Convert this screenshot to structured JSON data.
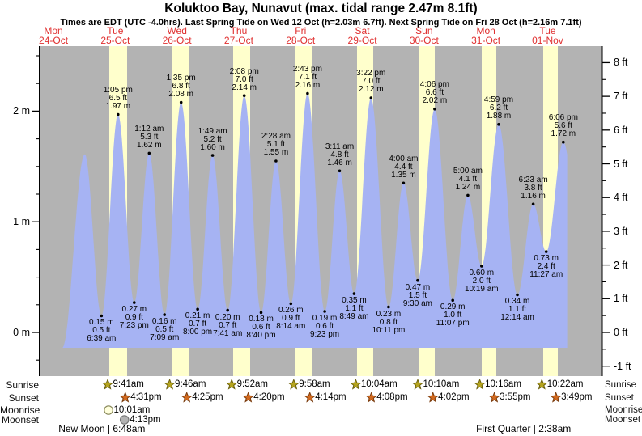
{
  "header": {
    "title": "Koluktoo Bay, Nunavut (max. tidal range 2.47m 8.1ft)",
    "subtitle": "Times are EDT (UTC -4.0hrs). Last Spring Tide on Wed 12 Oct (h=2.03m 6.7ft). Next Spring Tide on Fri 28 Oct (h=2.16m 7.1ft)"
  },
  "colors": {
    "plot_bg": "#b3b3b3",
    "daylight": "#ffffcc",
    "tide_fill": "#a6b3f3",
    "day_label": "#e03030",
    "sunrise_star": "#b5a41e",
    "sunrise_star_stroke": "#6b610f",
    "sunset_star": "#d2691e",
    "sunset_star_stroke": "#7a3c0e",
    "moonrise_fill": "#ffffdd",
    "moonrise_stroke": "#88885a",
    "moonset_fill": "#b3b3b3",
    "moonset_stroke": "#777777"
  },
  "axis": {
    "left_ticks": [
      {
        "v": 2,
        "label": "2 m"
      },
      {
        "v": 1,
        "label": "1 m"
      },
      {
        "v": 0,
        "label": "0 m"
      }
    ],
    "right_ticks": [
      {
        "v": 8,
        "label": "8 ft"
      },
      {
        "v": 7,
        "label": "7 ft"
      },
      {
        "v": 6,
        "label": "6 ft"
      },
      {
        "v": 5,
        "label": "5 ft"
      },
      {
        "v": 4,
        "label": "4 ft"
      },
      {
        "v": 3,
        "label": "3 ft"
      },
      {
        "v": 2,
        "label": "2 ft"
      },
      {
        "v": 1,
        "label": "1 ft"
      },
      {
        "v": 0,
        "label": "0 ft"
      },
      {
        "v": -1,
        "label": "-1 ft"
      }
    ]
  },
  "chart_data": {
    "type": "area",
    "title": "Koluktoo Bay, Nunavut (max. tidal range 2.47m 8.1ft)",
    "ylabel_left": "m",
    "ylabel_right": "ft",
    "ylim_m": [
      -0.4,
      2.6
    ],
    "days": [
      {
        "name": "Mon",
        "date": "24-Oct"
      },
      {
        "name": "Tue",
        "date": "25-Oct"
      },
      {
        "name": "Wed",
        "date": "26-Oct"
      },
      {
        "name": "Thu",
        "date": "27-Oct"
      },
      {
        "name": "Fri",
        "date": "28-Oct"
      },
      {
        "name": "Sat",
        "date": "29-Oct"
      },
      {
        "name": "Sun",
        "date": "30-Oct"
      },
      {
        "name": "Mon",
        "date": "31-Oct"
      },
      {
        "name": "Tue",
        "date": "01-Nov"
      }
    ],
    "curve_start": {
      "day": 0,
      "hour": 15.4,
      "h": -0.14
    },
    "curve_end": {
      "day": 8,
      "hour": 19.6
    },
    "end_pseudo_low": {
      "day": 9,
      "hour": 2.0,
      "h": 0.4
    },
    "extrema": [
      {
        "kind": "high",
        "day": 1,
        "hour": 0.15,
        "h": 1.61
      },
      {
        "kind": "low",
        "day": 1,
        "hour": 6.65,
        "h": 0.15,
        "time": "6:39 am",
        "ft": "0.5 ft",
        "m": "0.15 m"
      },
      {
        "kind": "high",
        "day": 1,
        "hour": 13.083,
        "h": 1.97,
        "time": "1:05 pm",
        "ft": "6.5 ft",
        "m": "1.97 m"
      },
      {
        "kind": "low",
        "day": 1,
        "hour": 19.383,
        "h": 0.27,
        "time": "7:23 pm",
        "ft": "0.9 ft",
        "m": "0.27 m"
      },
      {
        "kind": "high",
        "day": 2,
        "hour": 1.2,
        "h": 1.62,
        "time": "1:12 am",
        "ft": "5.3 ft",
        "m": "1.62 m"
      },
      {
        "kind": "low",
        "day": 2,
        "hour": 7.15,
        "h": 0.16,
        "time": "7:09 am",
        "ft": "0.5 ft",
        "m": "0.16 m"
      },
      {
        "kind": "high",
        "day": 2,
        "hour": 13.583,
        "h": 2.08,
        "time": "1:35 pm",
        "ft": "6.8 ft",
        "m": "2.08 m"
      },
      {
        "kind": "low",
        "day": 2,
        "hour": 20.0,
        "h": 0.21,
        "time": "8:00 pm",
        "ft": "0.7 ft",
        "m": "0.21 m"
      },
      {
        "kind": "high",
        "day": 3,
        "hour": 1.817,
        "h": 1.6,
        "time": "1:49 am",
        "ft": "5.2 ft",
        "m": "1.60 m"
      },
      {
        "kind": "low",
        "day": 3,
        "hour": 7.683,
        "h": 0.2,
        "time": "7:41 am",
        "ft": "0.7 ft",
        "m": "0.20 m"
      },
      {
        "kind": "high",
        "day": 3,
        "hour": 14.133,
        "h": 2.14,
        "time": "2:08 pm",
        "ft": "7.0 ft",
        "m": "2.14 m"
      },
      {
        "kind": "low",
        "day": 3,
        "hour": 20.667,
        "h": 0.18,
        "time": "8:40 pm",
        "ft": "0.6 ft",
        "m": "0.18 m"
      },
      {
        "kind": "high",
        "day": 4,
        "hour": 2.467,
        "h": 1.55,
        "time": "2:28 am",
        "ft": "5.1 ft",
        "m": "1.55 m"
      },
      {
        "kind": "low",
        "day": 4,
        "hour": 8.233,
        "h": 0.26,
        "time": "8:14 am",
        "ft": "0.9 ft",
        "m": "0.26 m"
      },
      {
        "kind": "high",
        "day": 4,
        "hour": 14.717,
        "h": 2.16,
        "time": "2:43 pm",
        "ft": "7.1 ft",
        "m": "2.16 m"
      },
      {
        "kind": "low",
        "day": 4,
        "hour": 21.383,
        "h": 0.19,
        "time": "9:23 pm",
        "ft": "0.6 ft",
        "m": "0.19 m"
      },
      {
        "kind": "high",
        "day": 5,
        "hour": 3.183,
        "h": 1.46,
        "time": "3:11 am",
        "ft": "4.8 ft",
        "m": "1.46 m"
      },
      {
        "kind": "low",
        "day": 5,
        "hour": 8.817,
        "h": 0.35,
        "time": "8:49 am",
        "ft": "1.1 ft",
        "m": "0.35 m"
      },
      {
        "kind": "high",
        "day": 5,
        "hour": 15.367,
        "h": 2.12,
        "time": "3:22 pm",
        "ft": "7.0 ft",
        "m": "2.12 m"
      },
      {
        "kind": "low",
        "day": 5,
        "hour": 22.183,
        "h": 0.23,
        "time": "10:11 pm",
        "ft": "0.8 ft",
        "m": "0.23 m"
      },
      {
        "kind": "high",
        "day": 6,
        "hour": 4.0,
        "h": 1.35,
        "time": "4:00 am",
        "ft": "4.4 ft",
        "m": "1.35 m"
      },
      {
        "kind": "low",
        "day": 6,
        "hour": 9.5,
        "h": 0.47,
        "time": "9:30 am",
        "ft": "1.5 ft",
        "m": "0.47 m"
      },
      {
        "kind": "high",
        "day": 6,
        "hour": 16.1,
        "h": 2.02,
        "time": "4:06 pm",
        "ft": "6.6 ft",
        "m": "2.02 m"
      },
      {
        "kind": "low",
        "day": 6,
        "hour": 23.117,
        "h": 0.29,
        "time": "11:07 pm",
        "ft": "1.0 ft",
        "m": "0.29 m"
      },
      {
        "kind": "high",
        "day": 7,
        "hour": 5.0,
        "h": 1.24,
        "time": "5:00 am",
        "ft": "4.1 ft",
        "m": "1.24 m"
      },
      {
        "kind": "low",
        "day": 7,
        "hour": 10.317,
        "h": 0.6,
        "time": "10:19 am",
        "ft": "2.0 ft",
        "m": "0.60 m"
      },
      {
        "kind": "high",
        "day": 7,
        "hour": 16.983,
        "h": 1.88,
        "time": "4:59 pm",
        "ft": "6.2 ft",
        "m": "1.88 m"
      },
      {
        "kind": "low",
        "day": 8,
        "hour": 0.233,
        "h": 0.34,
        "time": "12:14 am",
        "ft": "1.1 ft",
        "m": "0.34 m"
      },
      {
        "kind": "high",
        "day": 8,
        "hour": 6.383,
        "h": 1.16,
        "time": "6:23 am",
        "ft": "3.8 ft",
        "m": "1.16 m"
      },
      {
        "kind": "low",
        "day": 8,
        "hour": 11.45,
        "h": 0.73,
        "time": "11:27 am",
        "ft": "2.4 ft",
        "m": "0.73 m"
      },
      {
        "kind": "high",
        "day": 8,
        "hour": 18.1,
        "h": 1.72,
        "time": "6:06 pm",
        "ft": "5.6 ft",
        "m": "1.72 m"
      }
    ]
  },
  "sun_moon": {
    "row_labels": [
      "Sunrise",
      "Sunset",
      "Moonrise",
      "Moonset"
    ],
    "sunrise": [
      {
        "day": 1,
        "hour": 9.683,
        "time": "9:41am"
      },
      {
        "day": 2,
        "hour": 9.767,
        "time": "9:46am"
      },
      {
        "day": 3,
        "hour": 9.867,
        "time": "9:52am"
      },
      {
        "day": 4,
        "hour": 9.967,
        "time": "9:58am"
      },
      {
        "day": 5,
        "hour": 10.067,
        "time": "10:04am"
      },
      {
        "day": 6,
        "hour": 10.167,
        "time": "10:10am"
      },
      {
        "day": 7,
        "hour": 10.267,
        "time": "10:16am"
      },
      {
        "day": 8,
        "hour": 10.367,
        "time": "10:22am"
      }
    ],
    "sunset": [
      {
        "day": 1,
        "hour": 16.517,
        "time": "4:31pm"
      },
      {
        "day": 2,
        "hour": 16.417,
        "time": "4:25pm"
      },
      {
        "day": 3,
        "hour": 16.333,
        "time": "4:20pm"
      },
      {
        "day": 4,
        "hour": 16.233,
        "time": "4:14pm"
      },
      {
        "day": 5,
        "hour": 16.133,
        "time": "4:08pm"
      },
      {
        "day": 6,
        "hour": 16.033,
        "time": "4:02pm"
      },
      {
        "day": 7,
        "hour": 15.917,
        "time": "3:55pm"
      },
      {
        "day": 8,
        "hour": 15.817,
        "time": "3:49pm"
      }
    ],
    "moonrise": [
      {
        "day": 1,
        "hour": 10.017,
        "time": "10:01am"
      }
    ],
    "moonset": [
      {
        "day": 1,
        "hour": 16.217,
        "time": "4:13pm"
      }
    ],
    "phases": [
      {
        "label": "New Moon | 6:48am",
        "day": 1,
        "hour": 6.8
      },
      {
        "label": "First Quarter | 2:38am",
        "day": 8,
        "hour": 2.633
      }
    ]
  }
}
